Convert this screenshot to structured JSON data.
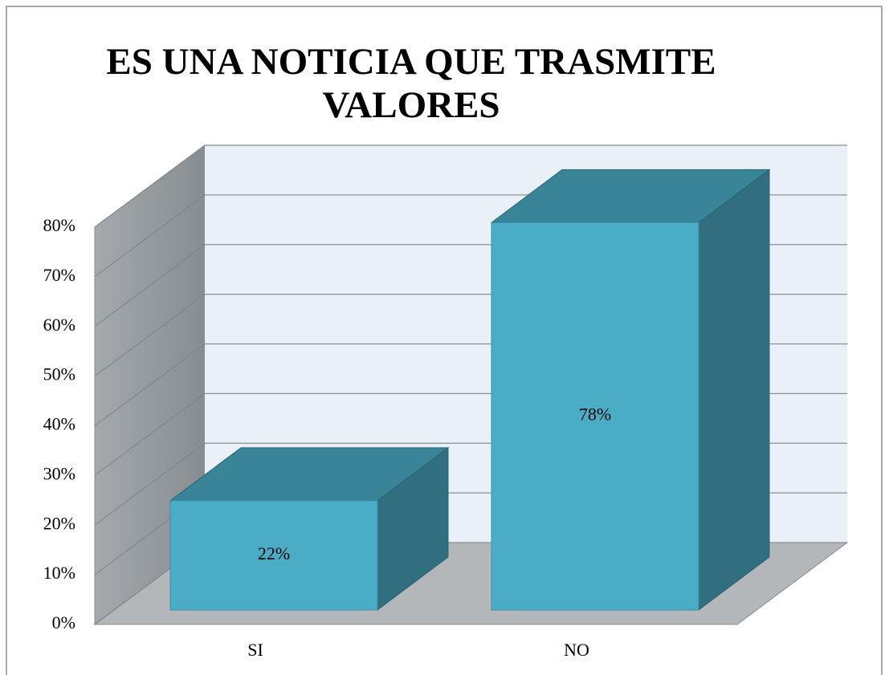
{
  "chart_data": {
    "type": "bar3d",
    "title": "ES UNA NOTICIA QUE TRASMITE VALORES",
    "categories": [
      "SI",
      "NO"
    ],
    "values": [
      22,
      78
    ],
    "value_labels": [
      "22%",
      "78%"
    ],
    "colors": {
      "front": "#4bacc6",
      "top": "#3a8497",
      "side": "#316f80"
    },
    "ylim": [
      0,
      80
    ],
    "yticks": [
      {
        "value": 0,
        "label": "0%"
      },
      {
        "value": 10,
        "label": "10%"
      },
      {
        "value": 20,
        "label": "20%"
      },
      {
        "value": 30,
        "label": "30%"
      },
      {
        "value": 40,
        "label": "40%"
      },
      {
        "value": 50,
        "label": "50%"
      },
      {
        "value": 60,
        "label": "60%"
      },
      {
        "value": 70,
        "label": "70%"
      },
      {
        "value": 80,
        "label": "80%"
      }
    ],
    "grid": true
  }
}
